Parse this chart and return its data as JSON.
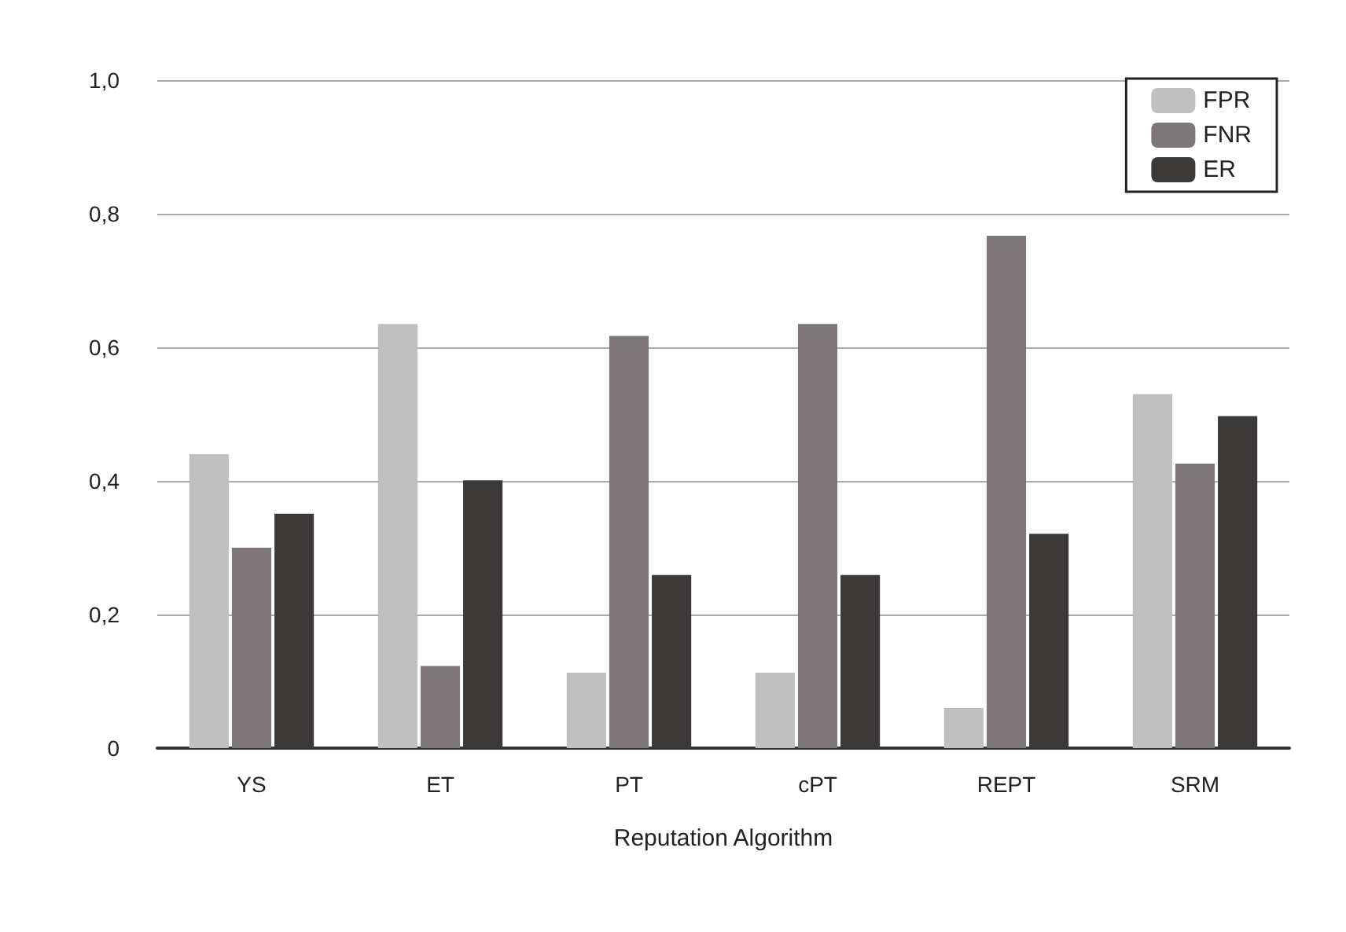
{
  "chart_data": {
    "type": "bar",
    "xlabel": "Reputation Algorithm",
    "categories": [
      "YS",
      "ET",
      "PT",
      "cPT",
      "REPT",
      "SRM"
    ],
    "series": [
      {
        "name": "FPR",
        "color": "#c0c0c0",
        "values": [
          0.44,
          0.635,
          0.113,
          0.113,
          0.06,
          0.53
        ]
      },
      {
        "name": "FNR",
        "color": "#7d777a",
        "values": [
          0.3,
          0.123,
          0.617,
          0.635,
          0.767,
          0.426
        ]
      },
      {
        "name": "ER",
        "color": "#3b3a38",
        "values": [
          0.351,
          0.401,
          0.259,
          0.259,
          0.321,
          0.497
        ]
      }
    ],
    "ylim": [
      0,
      1
    ],
    "yticks": [
      {
        "value": 0,
        "label": "0"
      },
      {
        "value": 0.2,
        "label": "0,2"
      },
      {
        "value": 0.4,
        "label": "0,4"
      },
      {
        "value": 0.6,
        "label": "0,6"
      },
      {
        "value": 0.8,
        "label": "0,8"
      },
      {
        "value": 1,
        "label": "1,0"
      }
    ],
    "grid": "y",
    "legend": "top right"
  }
}
